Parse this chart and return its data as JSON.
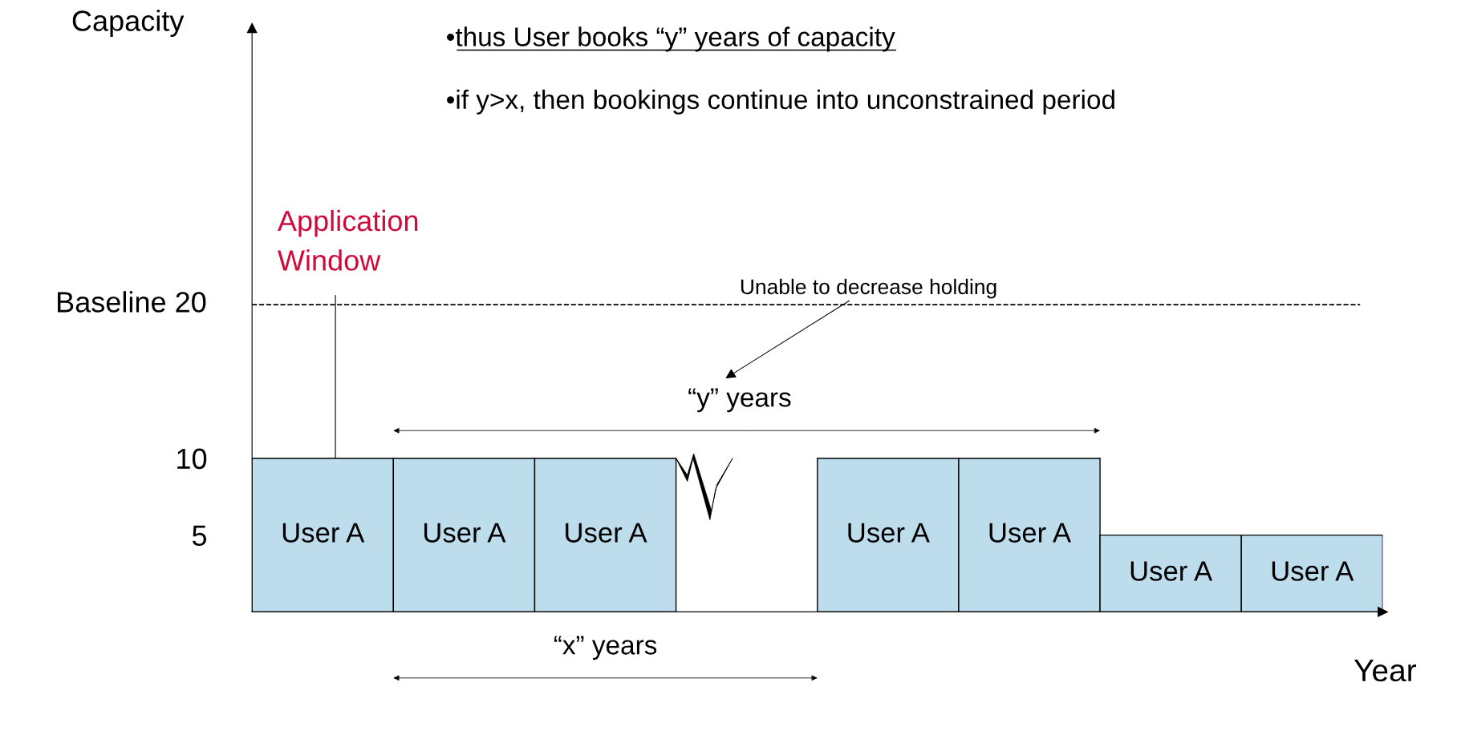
{
  "chart_data": {
    "type": "bar",
    "ylabel": "Capacity",
    "xlabel": "Year",
    "categories": [
      null,
      null,
      null,
      null,
      null,
      null,
      null,
      null
    ],
    "values": [
      10,
      10,
      10,
      null,
      10,
      10,
      5,
      5
    ],
    "value_labels": [
      "User A",
      "User A",
      "User A",
      null,
      "User A",
      "User A",
      "User A",
      "User A"
    ],
    "color": "#bddcec",
    "ylim": [
      0,
      38
    ],
    "yticks": [
      5,
      10
    ],
    "ref_lines": [
      {
        "axis": "y",
        "value": 20,
        "label": "Baseline 20",
        "color": "#000000",
        "line_style": "dashed"
      }
    ],
    "annotations": [
      "•thus User books “y” years of capacity",
      "•if y>x, then bookings continue into unconstrained period",
      "Application\nWindow",
      "Unable to decrease holding",
      "“y” years",
      "“x” years"
    ],
    "grid": false,
    "legend": false
  }
}
